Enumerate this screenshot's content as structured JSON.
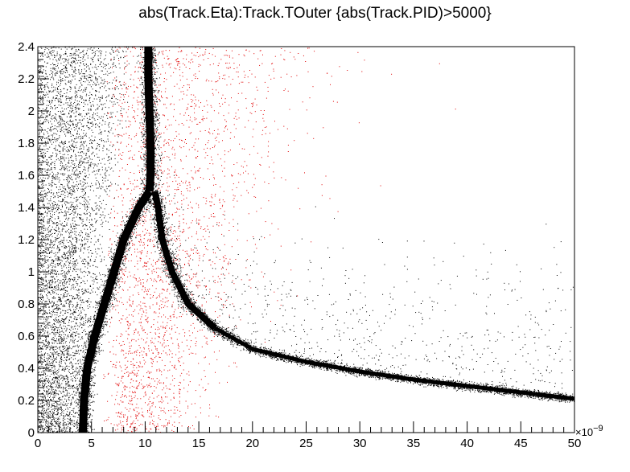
{
  "chart_data": {
    "type": "scatter",
    "title": "abs(Track.Eta):Track.TOuter {abs(Track.PID)>5000}",
    "xlabel": "",
    "ylabel": "",
    "x_exponent_label": "×10",
    "x_exponent_power": "−9",
    "xlim": [
      0,
      50
    ],
    "ylim": [
      0,
      2.4
    ],
    "x_ticks": [
      "0",
      "5",
      "10",
      "15",
      "20",
      "25",
      "30",
      "35",
      "40",
      "45",
      "50"
    ],
    "y_ticks": [
      "0",
      "0.2",
      "0.4",
      "0.6",
      "0.8",
      "1",
      "1.2",
      "1.4",
      "1.6",
      "1.8",
      "2",
      "2.2",
      "2.4"
    ],
    "grid": false,
    "series": [
      {
        "color": "#000000",
        "values": [
          [
            4.2,
            0.0
          ],
          [
            4.3,
            0.2
          ],
          [
            4.6,
            0.4
          ],
          [
            5.3,
            0.6
          ],
          [
            6.2,
            0.8
          ],
          [
            7.1,
            1.0
          ],
          [
            8.0,
            1.2
          ],
          [
            9.4,
            1.4
          ],
          [
            10.4,
            1.5
          ],
          [
            10.5,
            1.6
          ],
          [
            10.5,
            1.8
          ],
          [
            10.4,
            2.0
          ],
          [
            10.3,
            2.2
          ],
          [
            10.3,
            2.4
          ],
          [
            10.9,
            1.5
          ],
          [
            11.2,
            1.4
          ],
          [
            11.6,
            1.2
          ],
          [
            12.5,
            1.0
          ],
          [
            14.0,
            0.8
          ],
          [
            16.5,
            0.65
          ],
          [
            20.0,
            0.52
          ],
          [
            25.0,
            0.44
          ],
          [
            30.0,
            0.38
          ],
          [
            35.0,
            0.33
          ],
          [
            40.0,
            0.29
          ],
          [
            45.0,
            0.25
          ],
          [
            50.0,
            0.21
          ]
        ],
        "scatter_region": "dense background points, x 0–10, all eta"
      },
      {
        "color": "#e00000",
        "values": [
          [
            7,
            0.1
          ],
          [
            9,
            0.3
          ],
          [
            10,
            0.7
          ],
          [
            12,
            0.2
          ],
          [
            14,
            1.0
          ],
          [
            15,
            1.9
          ],
          [
            12,
            2.3
          ],
          [
            18,
            1.5
          ],
          [
            20,
            0.9
          ],
          [
            25,
            2.0
          ]
        ],
        "scatter_region": "sparse points, x 6–30, all eta, densest near x 8–14"
      }
    ]
  }
}
